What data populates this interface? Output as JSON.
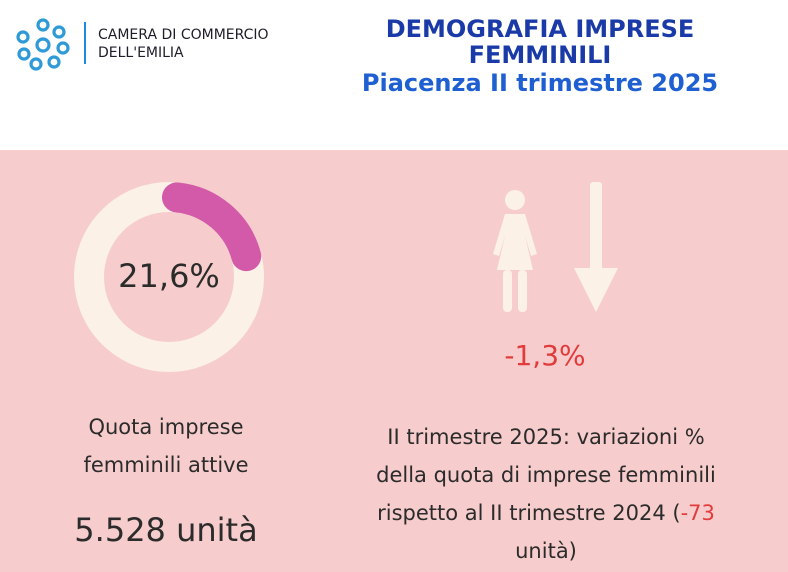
{
  "header": {
    "logo_line1": "CAMERA DI COMMERCIO",
    "logo_line2": "DELL'EMILIA",
    "title_line1": "DEMOGRAFIA IMPRESE",
    "title_line2": "FEMMINILI",
    "title_line3": "Piacenza II trimestre 2025"
  },
  "share": {
    "value_text": "21,6%",
    "fraction": 0.216,
    "caption_line1": "Quota imprese",
    "caption_line2": "femminili attive",
    "units_text": "5.528 unità"
  },
  "variation": {
    "value_text": "-1,3%",
    "caption_line1": "II trimestre 2025: variazioni %",
    "caption_line2": "della quota di imprese femminili",
    "caption_line3_prefix": "rispetto al II trimestre 2024 (",
    "caption_line3_highlight": "-73",
    "caption_line4": "unità)"
  },
  "icons": {
    "logo": "chamber-of-commerce-logo-icon",
    "woman": "woman-icon",
    "arrow": "down-arrow-icon"
  },
  "colors": {
    "title_dark_blue": "#1a3aa8",
    "title_blue": "#1e5fd2",
    "panel_bg": "#f6cdcc",
    "donut_track": "#fbf1e6",
    "donut_fill": "#d35aa8",
    "negative_red": "#e23b3b",
    "icon_cream": "#fbf1e6"
  }
}
